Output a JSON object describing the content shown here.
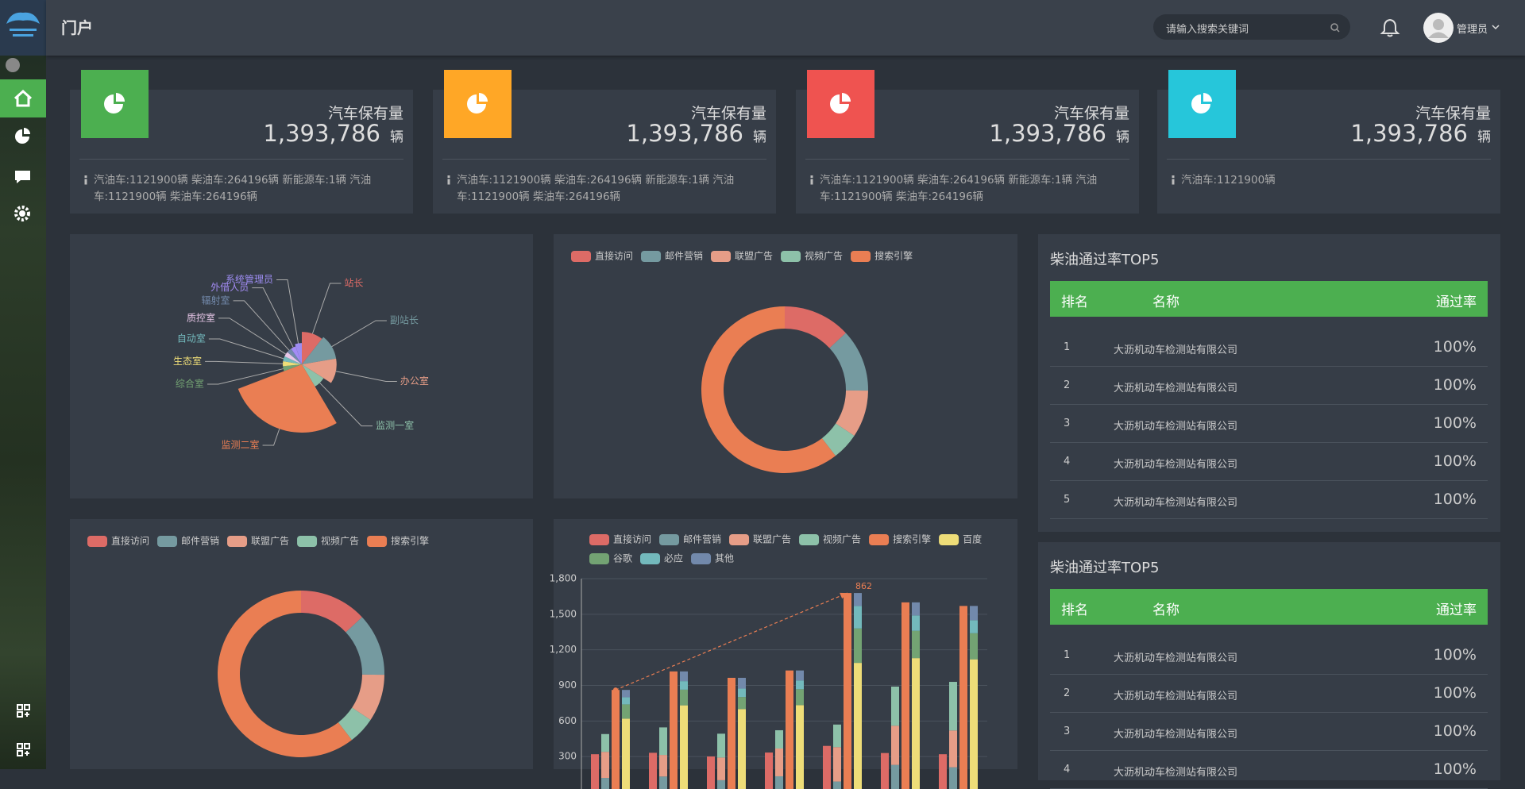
{
  "header": {
    "title": "门户",
    "search_placeholder": "请输入搜索关键词",
    "user": "管理员"
  },
  "cards": [
    {
      "title": "汽车保有量",
      "value": "1,393,786",
      "unit": "辆",
      "color": "#4caf50",
      "desc": "汽油车:1121900辆 柴油车:264196辆 新能源车:1辆 汽油车:1121900辆 柴油车:264196辆"
    },
    {
      "title": "汽车保有量",
      "value": "1,393,786",
      "unit": "辆",
      "color": "#ffa726",
      "desc": "汽油车:1121900辆 柴油车:264196辆 新能源车:1辆 汽油车:1121900辆 柴油车:264196辆"
    },
    {
      "title": "汽车保有量",
      "value": "1,393,786",
      "unit": "辆",
      "color": "#ef5350",
      "desc": "汽油车:1121900辆 柴油车:264196辆 新能源车:1辆 汽油车:1121900辆 柴油车:264196辆"
    },
    {
      "title": "汽车保有量",
      "value": "1,393,786",
      "unit": "辆",
      "color": "#26c6da",
      "desc": "汽油车:1121900辆"
    }
  ],
  "chart_data": [
    {
      "type": "rose",
      "categories": [
        "站长",
        "副站长",
        "办公室",
        "监测一室",
        "监测二室",
        "综合室",
        "生态室",
        "自动室",
        "质控室",
        "辐射室",
        "外借人员",
        "系统管理员"
      ],
      "values": [
        10,
        11,
        11,
        7,
        26,
        4,
        4,
        4,
        4,
        4,
        4,
        5
      ],
      "colors": [
        "#dd6b66",
        "#759aa0",
        "#e69d87",
        "#8dc1a9",
        "#ea7e53",
        "#73a373",
        "#eedd78",
        "#73b9bc",
        "#e8c7e8",
        "#7289ab",
        "#a48cf5",
        "#9d8cf2"
      ]
    },
    {
      "type": "donut",
      "categories": [
        "直接访问",
        "邮件营销",
        "联盟广告",
        "视频广告",
        "搜索引擎"
      ],
      "values": [
        335,
        310,
        234,
        135,
        1548
      ],
      "colors": [
        "#dd6b66",
        "#759aa0",
        "#e69d87",
        "#8dc1a9",
        "#ea7e53"
      ]
    },
    {
      "type": "donut",
      "categories": [
        "直接访问",
        "邮件营销",
        "联盟广告",
        "视频广告",
        "搜索引擎"
      ],
      "values": [
        335,
        310,
        234,
        135,
        1548
      ],
      "colors": [
        "#dd6b66",
        "#759aa0",
        "#e69d87",
        "#8dc1a9",
        "#ea7e53"
      ]
    },
    {
      "type": "bar",
      "categories": [
        null,
        null,
        null,
        null,
        null,
        null,
        null
      ],
      "ylim": [
        0,
        1800
      ],
      "yticks": [
        300,
        600,
        900,
        {
          "value": 1200,
          "label": "1,200"
        },
        {
          "value": 1500,
          "label": "1,500"
        },
        {
          "value": 1800,
          "label": "1,800"
        }
      ],
      "grid": true,
      "series": [
        {
          "name": "直接访问",
          "color": "#dd6b66",
          "stack": false,
          "values": [
            320,
            332,
            301,
            334,
            390,
            330,
            320
          ]
        },
        {
          "name": "邮件营销",
          "color": "#759aa0",
          "stack": false,
          "values": [
            120,
            132,
            101,
            134,
            90,
            230,
            210
          ]
        },
        {
          "name": "联盟广告",
          "color": "#e69d87",
          "stack": true,
          "values": [
            220,
            182,
            191,
            234,
            290,
            330,
            310
          ]
        },
        {
          "name": "视频广告",
          "color": "#8dc1a9",
          "stack": true,
          "values": [
            150,
            232,
            201,
            154,
            190,
            330,
            410
          ]
        },
        {
          "name": "搜索引擎",
          "color": "#ea7e53",
          "stack": false,
          "mark_line": true,
          "values": [
            862,
            1018,
            964,
            1026,
            1679,
            1600,
            1570
          ]
        },
        {
          "name": "百度",
          "color": "#eedd78",
          "stack": false,
          "values": [
            620,
            732,
            701,
            734,
            1090,
            1130,
            1120
          ]
        },
        {
          "name": "谷歌",
          "color": "#73a373",
          "stack": true,
          "values": [
            120,
            132,
            101,
            134,
            290,
            230,
            220
          ]
        },
        {
          "name": "必应",
          "color": "#73b9bc",
          "stack": true,
          "values": [
            60,
            72,
            71,
            74,
            190,
            130,
            110
          ]
        },
        {
          "name": "其他",
          "color": "#7289ab",
          "stack": true,
          "values": [
            62,
            82,
            91,
            84,
            109,
            110,
            120
          ]
        }
      ]
    }
  ],
  "tables": [
    {
      "title": "柴油通过率TOP5",
      "columns": [
        "排名",
        "名称",
        "通过率"
      ],
      "rows": [
        [
          1,
          "大沥机动车检测站有限公司",
          "100%"
        ],
        [
          2,
          "大沥机动车检测站有限公司",
          "100%"
        ],
        [
          3,
          "大沥机动车检测站有限公司",
          "100%"
        ],
        [
          4,
          "大沥机动车检测站有限公司",
          "100%"
        ],
        [
          5,
          "大沥机动车检测站有限公司",
          "100%"
        ]
      ]
    },
    {
      "title": "柴油通过率TOP5",
      "columns": [
        "排名",
        "名称",
        "通过率"
      ],
      "rows": [
        [
          1,
          "大沥机动车检测站有限公司",
          "100%"
        ],
        [
          2,
          "大沥机动车检测站有限公司",
          "100%"
        ],
        [
          3,
          "大沥机动车检测站有限公司",
          "100%"
        ],
        [
          4,
          "大沥机动车检测站有限公司",
          "100%"
        ]
      ]
    }
  ]
}
